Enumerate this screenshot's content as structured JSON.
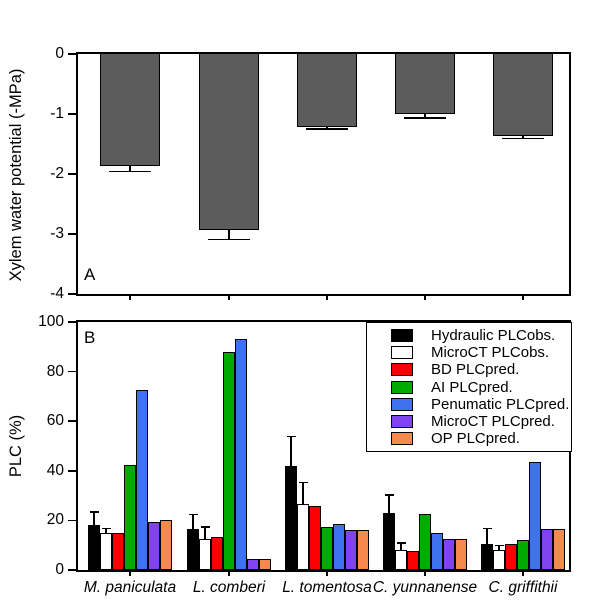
{
  "panel_labels": {
    "a": "A",
    "b": "B"
  },
  "chart_data": [
    {
      "panel": "A",
      "type": "bar",
      "ylabel": "Xylem water potential (-MPa)",
      "ylim": [
        0,
        -4
      ],
      "yticks": [
        0,
        -1,
        -2,
        -3,
        -4
      ],
      "grid": false,
      "categories": [
        "M. paniculata",
        "L. comberi",
        "L. tomentosa",
        "C. yunnanense",
        "C. griffithii"
      ],
      "values": [
        -1.87,
        -2.93,
        -1.21,
        -1.0,
        -1.36
      ],
      "errors": [
        0.1,
        0.17,
        0.05,
        0.08,
        0.06
      ],
      "bar_color": "#5c5c5c"
    },
    {
      "panel": "B",
      "type": "grouped-bar",
      "ylabel": "PLC (%)",
      "ylim": [
        0,
        100
      ],
      "yticks": [
        0,
        20,
        40,
        60,
        80,
        100
      ],
      "grid": false,
      "legend_position": "top-right",
      "categories": [
        "M. paniculata",
        "L. comberi",
        "L. tomentosa",
        "C. yunnanense",
        "C. griffithii"
      ],
      "series": [
        {
          "name": "Hydraulic PLCobs.",
          "color": "#000000",
          "values": [
            18,
            16.5,
            42,
            23,
            10.5
          ],
          "errors": [
            5,
            5.5,
            11.5,
            7,
            6
          ]
        },
        {
          "name": "MicroCT PLCobs.",
          "color": "#ffffff",
          "values": [
            15,
            12.5,
            26.5,
            8,
            8
          ],
          "errors": [
            1.5,
            4.5,
            8.5,
            2.5,
            1.5
          ]
        },
        {
          "name": "BD PLCpred.",
          "color": "#fc0000",
          "values": [
            15,
            13.5,
            26,
            7.5,
            10.5
          ],
          "errors": null
        },
        {
          "name": "AI PLCpred.",
          "color": "#00ab00",
          "values": [
            42.5,
            88,
            17.5,
            22.5,
            12
          ],
          "errors": null
        },
        {
          "name": "Penumatic PLCpred.",
          "color": "#3e72ef",
          "values": [
            72.5,
            93,
            18.5,
            15,
            43.5
          ],
          "errors": null
        },
        {
          "name": "MicroCT PLCpred.",
          "color": "#8142f2",
          "values": [
            19.5,
            4.5,
            16,
            12.5,
            16.5
          ],
          "errors": null
        },
        {
          "name": "OP PLCpred.",
          "color": "#f6894e",
          "values": [
            20,
            4.5,
            16,
            12.5,
            16.5
          ],
          "errors": null
        }
      ]
    }
  ]
}
